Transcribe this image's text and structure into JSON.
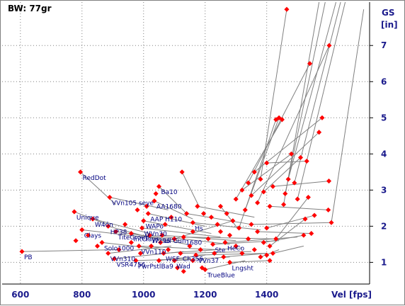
{
  "chart_data": {
    "type": "scatter",
    "title": "BW:  77gr",
    "xlabel": "Vel [fps]",
    "ylabel": [
      "GS",
      "[in]"
    ],
    "xlim": [
      555,
      1715
    ],
    "ylim": [
      0.4,
      8.2
    ],
    "xticks": [
      600,
      800,
      1000,
      1200,
      1400
    ],
    "yticks": [
      1,
      2,
      3,
      4,
      5,
      6,
      7
    ],
    "grid": true,
    "colors": {
      "point": "#ff0000",
      "line": "#808080",
      "grid": "#808080",
      "text": "#1a1a8c",
      "label": "#000080"
    },
    "labeled_loads": [
      {
        "name": "PB",
        "x": 605,
        "y": 1.3
      },
      {
        "name": "RedDot",
        "x": 795,
        "y": 3.5
      },
      {
        "name": "Unique",
        "x": 775,
        "y": 2.4
      },
      {
        "name": "Clays",
        "x": 800,
        "y": 1.9
      },
      {
        "name": "W4ón",
        "x": 835,
        "y": 2.2
      },
      {
        "name": "HP38",
        "x": 885,
        "y": 2.0
      },
      {
        "name": "TiteGroup",
        "x": 910,
        "y": 1.85
      },
      {
        "name": "IntClays",
        "x": 960,
        "y": 1.8
      },
      {
        "name": "Solo1000",
        "x": 865,
        "y": 1.55
      },
      {
        "name": "VVn310",
        "x": 885,
        "y": 1.25
      },
      {
        "name": "VSR4756",
        "x": 905,
        "y": 1.1
      },
      {
        "name": "VVn105 seye",
        "x": 890,
        "y": 2.8
      },
      {
        "name": "Ba10",
        "x": 1050,
        "y": 3.1
      },
      {
        "name": "AA1680",
        "x": 1035,
        "y": 2.7
      },
      {
        "name": "AAP H110",
        "x": 1015,
        "y": 2.35
      },
      {
        "name": "WAPo",
        "x": 1000,
        "y": 2.15
      },
      {
        "name": "WVn30",
        "x": 995,
        "y": 1.95
      },
      {
        "name": "W296",
        "x": 1020,
        "y": 1.75
      },
      {
        "name": "Lil'Gun",
        "x": 1060,
        "y": 1.75
      },
      {
        "name": "VVn110",
        "x": 985,
        "y": 1.45
      },
      {
        "name": "WSF",
        "x": 1065,
        "y": 1.25
      },
      {
        "name": "PwrPstl",
        "x": 975,
        "y": 1.05
      },
      {
        "name": "Ba9",
        "x": 1050,
        "y": 1.05
      },
      {
        "name": "Wad",
        "x": 1100,
        "y": 1.05
      },
      {
        "name": "Ch356",
        "x": 1120,
        "y": 1.25
      },
      {
        "name": "VVn37",
        "x": 1170,
        "y": 1.2
      },
      {
        "name": "Hs",
        "x": 1160,
        "y": 2.1
      },
      {
        "name": "1680",
        "x": 1130,
        "y": 1.7
      },
      {
        "name": "Ste",
        "x": 1225,
        "y": 1.5
      },
      {
        "name": "HeCo",
        "x": 1265,
        "y": 1.55
      },
      {
        "name": "Lngsht",
        "x": 1280,
        "y": 1.0
      },
      {
        "name": "TrueBlue",
        "x": 1200,
        "y": 0.8
      }
    ],
    "series": [
      {
        "name": "",
        "points": [
          [
            605,
            1.3
          ],
          [
            795,
            3.5
          ],
          [
            775,
            2.4
          ],
          [
            800,
            1.9
          ],
          [
            835,
            2.2
          ],
          [
            885,
            2.0
          ],
          [
            910,
            1.85
          ],
          [
            960,
            1.8
          ],
          [
            865,
            1.55
          ],
          [
            885,
            1.25
          ],
          [
            905,
            1.1
          ],
          [
            890,
            2.8
          ],
          [
            1050,
            3.1
          ],
          [
            1035,
            2.7
          ],
          [
            1015,
            2.35
          ],
          [
            1000,
            2.15
          ],
          [
            995,
            1.95
          ],
          [
            1020,
            1.75
          ],
          [
            1060,
            1.75
          ],
          [
            985,
            1.45
          ],
          [
            1065,
            1.25
          ],
          [
            975,
            1.05
          ],
          [
            1050,
            1.05
          ],
          [
            1100,
            1.05
          ],
          [
            1120,
            1.25
          ],
          [
            1170,
            1.2
          ],
          [
            1160,
            2.1
          ],
          [
            1130,
            1.7
          ],
          [
            1225,
            1.5
          ],
          [
            1265,
            1.55
          ],
          [
            1280,
            1.0
          ],
          [
            1200,
            0.8
          ],
          [
            780,
            1.6
          ],
          [
            820,
            1.75
          ],
          [
            850,
            1.45
          ],
          [
            920,
            1.35
          ],
          [
            940,
            2.05
          ],
          [
            960,
            1.55
          ],
          [
            980,
            2.45
          ],
          [
            990,
            1.25
          ],
          [
            1010,
            2.55
          ],
          [
            1025,
            1.45
          ],
          [
            1040,
            2.9
          ],
          [
            1055,
            1.55
          ],
          [
            1070,
            2.05
          ],
          [
            1080,
            1.35
          ],
          [
            1090,
            2.25
          ],
          [
            1100,
            1.65
          ],
          [
            1110,
            0.85
          ],
          [
            1125,
            3.5
          ],
          [
            1130,
            0.75
          ],
          [
            1140,
            2.35
          ],
          [
            1150,
            1.45
          ],
          [
            1160,
            1.85
          ],
          [
            1175,
            2.55
          ],
          [
            1185,
            1.35
          ],
          [
            1195,
            2.35
          ],
          [
            1210,
            1.65
          ],
          [
            1220,
            2.25
          ],
          [
            1230,
            1.25
          ],
          [
            1240,
            2.05
          ],
          [
            1250,
            1.85
          ],
          [
            1260,
            1.15
          ],
          [
            1270,
            2.35
          ],
          [
            1280,
            1.75
          ],
          [
            1290,
            2.15
          ],
          [
            1300,
            1.45
          ],
          [
            1310,
            1.95
          ],
          [
            1320,
            1.25
          ],
          [
            1330,
            2.45
          ],
          [
            1340,
            1.65
          ],
          [
            1350,
            2.05
          ],
          [
            1360,
            1.35
          ],
          [
            1370,
            1.85
          ],
          [
            1380,
            1.15
          ],
          [
            1390,
            1.55
          ],
          [
            1400,
            1.95
          ],
          [
            1410,
            1.45
          ],
          [
            1420,
            1.25
          ],
          [
            1430,
            1.65
          ],
          [
            1250,
            2.55
          ],
          [
            1300,
            2.75
          ],
          [
            1320,
            3.0
          ],
          [
            1340,
            3.2
          ],
          [
            1350,
            2.85
          ],
          [
            1360,
            3.5
          ],
          [
            1370,
            2.65
          ],
          [
            1380,
            3.3
          ],
          [
            1390,
            2.95
          ],
          [
            1400,
            3.75
          ],
          [
            1410,
            2.55
          ],
          [
            1420,
            3.1
          ],
          [
            1430,
            4.95
          ],
          [
            1440,
            5.0
          ],
          [
            1450,
            4.95
          ],
          [
            1455,
            2.6
          ],
          [
            1460,
            2.9
          ],
          [
            1470,
            3.3
          ],
          [
            1480,
            4.0
          ],
          [
            1490,
            3.2
          ],
          [
            1500,
            2.75
          ],
          [
            1510,
            3.9
          ],
          [
            1520,
            1.75
          ],
          [
            1525,
            2.2
          ],
          [
            1530,
            3.8
          ],
          [
            1535,
            2.8
          ],
          [
            1540,
            6.5
          ],
          [
            1545,
            1.8
          ],
          [
            1555,
            2.3
          ],
          [
            1570,
            4.6
          ],
          [
            1580,
            5.0
          ],
          [
            1600,
            2.45
          ],
          [
            1610,
            2.1
          ],
          [
            1602,
            3.25
          ],
          [
            1603,
            7.0
          ],
          [
            1465,
            8.0
          ],
          [
            1400,
            1.2
          ],
          [
            1410,
            1.05
          ],
          [
            1190,
            0.85
          ],
          [
            1160,
            1.05
          ]
        ]
      }
    ],
    "segments": [
      [
        [
          605,
          1.3
        ],
        [
          920,
          1.35
        ]
      ],
      [
        [
          795,
          3.5
        ],
        [
          910,
          2.6
        ]
      ],
      [
        [
          775,
          2.4
        ],
        [
          880,
          2.05
        ]
      ],
      [
        [
          800,
          1.9
        ],
        [
          1000,
          1.7
        ]
      ],
      [
        [
          835,
          2.2
        ],
        [
          1020,
          1.8
        ]
      ],
      [
        [
          885,
          2.0
        ],
        [
          1080,
          1.55
        ]
      ],
      [
        [
          910,
          1.85
        ],
        [
          1120,
          1.6
        ]
      ],
      [
        [
          960,
          1.8
        ],
        [
          1140,
          1.5
        ]
      ],
      [
        [
          865,
          1.55
        ],
        [
          1070,
          1.35
        ]
      ],
      [
        [
          885,
          1.25
        ],
        [
          1090,
          1.45
        ]
      ],
      [
        [
          905,
          1.1
        ],
        [
          1130,
          1.3
        ]
      ],
      [
        [
          890,
          2.8
        ],
        [
          1080,
          2.45
        ]
      ],
      [
        [
          1050,
          3.1
        ],
        [
          1140,
          2.35
        ]
      ],
      [
        [
          1035,
          2.7
        ],
        [
          1160,
          2.2
        ]
      ],
      [
        [
          1015,
          2.35
        ],
        [
          1200,
          2.0
        ]
      ],
      [
        [
          1000,
          2.15
        ],
        [
          1220,
          1.8
        ]
      ],
      [
        [
          995,
          1.95
        ],
        [
          1250,
          1.7
        ]
      ],
      [
        [
          1020,
          1.75
        ],
        [
          1280,
          1.5
        ]
      ],
      [
        [
          1060,
          1.75
        ],
        [
          1300,
          1.6
        ]
      ],
      [
        [
          985,
          1.45
        ],
        [
          1240,
          1.35
        ]
      ],
      [
        [
          1065,
          1.25
        ],
        [
          1320,
          1.4
        ]
      ],
      [
        [
          975,
          1.05
        ],
        [
          1150,
          1.1
        ]
      ],
      [
        [
          1050,
          1.05
        ],
        [
          1200,
          1.2
        ]
      ],
      [
        [
          1100,
          1.05
        ],
        [
          1280,
          1.15
        ]
      ],
      [
        [
          1120,
          1.25
        ],
        [
          1350,
          1.3
        ]
      ],
      [
        [
          1170,
          1.2
        ],
        [
          1400,
          1.25
        ]
      ],
      [
        [
          1160,
          2.1
        ],
        [
          1380,
          1.9
        ]
      ],
      [
        [
          1130,
          1.7
        ],
        [
          1420,
          1.65
        ]
      ],
      [
        [
          1225,
          1.5
        ],
        [
          1440,
          1.6
        ]
      ],
      [
        [
          1265,
          1.55
        ],
        [
          1500,
          1.7
        ]
      ],
      [
        [
          1280,
          1.0
        ],
        [
          1410,
          1.05
        ]
      ],
      [
        [
          1200,
          0.8
        ],
        [
          1330,
          1.05
        ]
      ],
      [
        [
          1125,
          3.5
        ],
        [
          1180,
          2.55
        ]
      ],
      [
        [
          1100,
          1.65
        ],
        [
          1290,
          2.15
        ]
      ],
      [
        [
          1140,
          2.35
        ],
        [
          1350,
          2.05
        ]
      ],
      [
        [
          1175,
          2.55
        ],
        [
          1360,
          2.25
        ]
      ],
      [
        [
          1250,
          2.55
        ],
        [
          1305,
          1.95
        ]
      ],
      [
        [
          1260,
          1.15
        ],
        [
          1400,
          1.25
        ]
      ],
      [
        [
          1300,
          2.75
        ],
        [
          1450,
          4.95
        ]
      ],
      [
        [
          1320,
          3.0
        ],
        [
          1480,
          4.0
        ]
      ],
      [
        [
          1340,
          3.2
        ],
        [
          1540,
          6.5
        ]
      ],
      [
        [
          1350,
          2.85
        ],
        [
          1570,
          4.6
        ]
      ],
      [
        [
          1360,
          3.5
        ],
        [
          1580,
          5.0
        ]
      ],
      [
        [
          1370,
          2.65
        ],
        [
          1603,
          7.0
        ]
      ],
      [
        [
          1380,
          3.3
        ],
        [
          1465,
          8.0
        ]
      ],
      [
        [
          1390,
          2.95
        ],
        [
          1510,
          3.9
        ]
      ],
      [
        [
          1400,
          3.75
        ],
        [
          1530,
          3.8
        ]
      ],
      [
        [
          1410,
          2.55
        ],
        [
          1600,
          2.45
        ]
      ],
      [
        [
          1420,
          3.1
        ],
        [
          1602,
          3.25
        ]
      ],
      [
        [
          1330,
          2.45
        ],
        [
          1440,
          5.0
        ]
      ],
      [
        [
          1310,
          1.95
        ],
        [
          1430,
          4.95
        ]
      ],
      [
        [
          1350,
          2.05
        ],
        [
          1610,
          2.1
        ]
      ],
      [
        [
          1370,
          1.85
        ],
        [
          1545,
          1.8
        ]
      ],
      [
        [
          1390,
          1.55
        ],
        [
          1520,
          1.75
        ]
      ],
      [
        [
          1400,
          1.95
        ],
        [
          1555,
          2.3
        ]
      ],
      [
        [
          1410,
          1.45
        ],
        [
          1525,
          2.2
        ]
      ],
      [
        [
          1430,
          1.65
        ],
        [
          1535,
          2.8
        ]
      ],
      [
        [
          1455,
          2.6
        ],
        [
          1570,
          8.2
        ]
      ],
      [
        [
          1460,
          2.9
        ],
        [
          1590,
          8.2
        ]
      ],
      [
        [
          1470,
          3.3
        ],
        [
          1625,
          8.2
        ]
      ],
      [
        [
          1490,
          3.2
        ],
        [
          1640,
          8.2
        ]
      ],
      [
        [
          1500,
          2.75
        ],
        [
          1655,
          8.2
        ]
      ],
      [
        [
          1610,
          2.1
        ],
        [
          1715,
          8.0
        ]
      ],
      [
        [
          1380,
          1.15
        ],
        [
          1440,
          1.35
        ]
      ],
      [
        [
          1420,
          1.25
        ],
        [
          1520,
          1.45
        ]
      ]
    ]
  }
}
